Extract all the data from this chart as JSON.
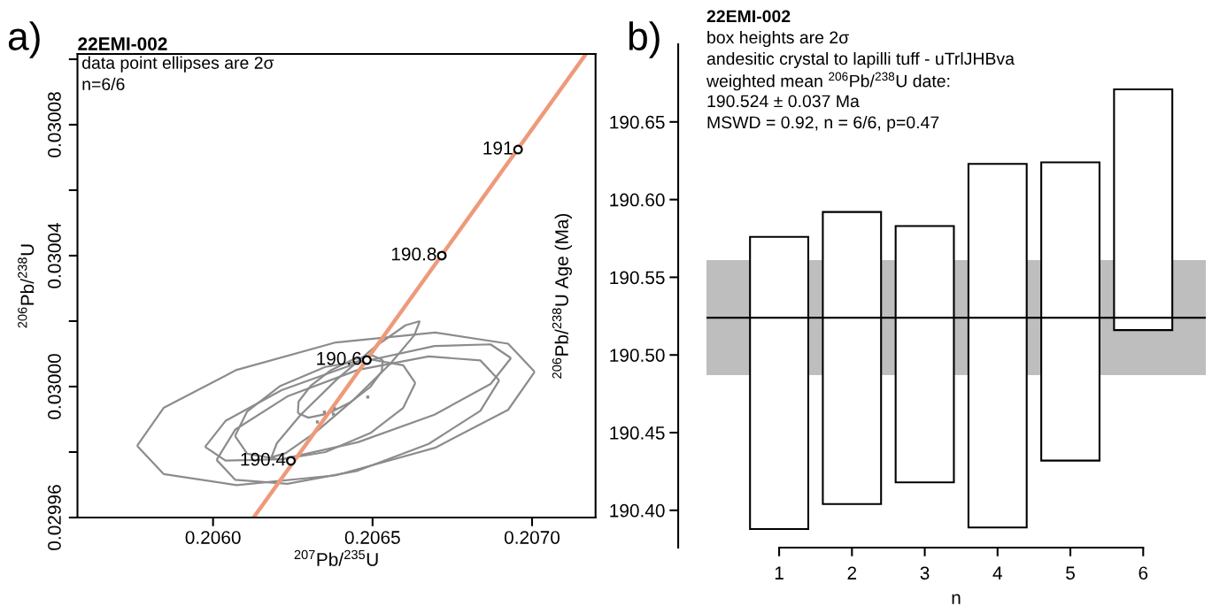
{
  "chart_data": [
    {
      "type": "line",
      "title": "22EMI-002",
      "xlabel": "$^{207}$Pb/$^{235}$U",
      "ylabel": "$^{206}$Pb/$^{238}$U",
      "xlim": [
        0.205575,
        0.207199
      ],
      "ylim": [
        0.02996,
        0.0301016
      ],
      "xticks": [
        {
          "value": 0.206,
          "label": "0.2060"
        },
        {
          "value": 0.2065,
          "label": "0.2065"
        },
        {
          "value": 0.207,
          "label": "0.2070"
        }
      ],
      "yticks": [
        0.02996,
        {
          "value": 0.02998,
          "label": null
        },
        {
          "value": 0.03,
          "label": "0.03000"
        },
        {
          "value": 0.03002,
          "label": null
        },
        0.03004,
        {
          "value": 0.03006,
          "label": null
        },
        0.03008,
        {
          "value": 0.0301,
          "label": null
        }
      ],
      "series": [
        {
          "type": "line",
          "color": "#8c8c8c",
          "x": [
            0.205762,
            0.205845,
            0.206074,
            0.206385,
            0.206696,
            0.206925,
            0.207008
          ],
          "values": [
            0.0299819,
            0.0299935,
            0.0300051,
            0.0300135,
            0.0300165,
            0.0300131,
            0.0300045
          ]
        },
        {
          "type": "line",
          "color": "#8c8c8c",
          "x": [
            0.205762,
            0.205845,
            0.206074,
            0.206385,
            0.206696,
            0.206925,
            0.207008
          ],
          "values": [
            0.0299819,
            0.0299733,
            0.0299699,
            0.0299729,
            0.0299813,
            0.0299929,
            0.0300045
          ]
        },
        {
          "type": "line",
          "color": "#8c8c8c",
          "x": [
            0.205975,
            0.206039,
            0.206215,
            0.206454,
            0.206694,
            0.20687,
            0.206934
          ],
          "values": [
            0.0299816,
            0.0299895,
            0.0299989,
            0.0300073,
            0.0300124,
            0.0300129,
            0.0300087
          ]
        },
        {
          "type": "line",
          "color": "#8c8c8c",
          "x": [
            0.205975,
            0.206039,
            0.206215,
            0.206454,
            0.206694,
            0.20687,
            0.206934
          ],
          "values": [
            0.0299816,
            0.0299774,
            0.0299778,
            0.029983,
            0.0299914,
            0.0300008,
            0.0300087
          ]
        },
        {
          "type": "line",
          "color": "#8c8c8c",
          "x": [
            0.206011,
            0.20607,
            0.206233,
            0.206454,
            0.206676,
            0.206838,
            0.206897
          ],
          "values": [
            0.0299776,
            0.0299869,
            0.029997,
            0.0300051,
            0.0300092,
            0.030008,
            0.0300019
          ]
        },
        {
          "type": "line",
          "color": "#8c8c8c",
          "x": [
            0.206011,
            0.20607,
            0.206233,
            0.206454,
            0.206676,
            0.206838,
            0.206897
          ],
          "values": [
            0.0299776,
            0.0299715,
            0.0299703,
            0.0299743,
            0.0299825,
            0.0299926,
            0.0300019
          ]
        },
        {
          "type": "line",
          "color": "#8c8c8c",
          "x": [
            0.206069,
            0.206107,
            0.206211,
            0.206352,
            0.206493,
            0.206596,
            0.206634
          ],
          "values": [
            0.0299849,
            0.0299924,
            0.0300002,
            0.030006,
            0.0300083,
            0.0300065,
            0.0300011
          ]
        },
        {
          "type": "line",
          "color": "#8c8c8c",
          "x": [
            0.206069,
            0.206107,
            0.206211,
            0.206352,
            0.206493,
            0.206596,
            0.206634
          ],
          "values": [
            0.0299849,
            0.0299795,
            0.0299777,
            0.02998,
            0.0299858,
            0.0299935,
            0.0300011
          ]
        },
        {
          "type": "line",
          "color": "#8c8c8c",
          "x": [
            0.206183,
            0.2062,
            0.206275,
            0.206388,
            0.206508,
            0.206603,
            0.206648
          ],
          "values": [
            0.0299784,
            0.0299827,
            0.0299914,
            0.0300022,
            0.0300122,
            0.0300187,
            0.03002
          ]
        },
        {
          "type": "line",
          "color": "#8c8c8c",
          "x": [
            0.206183,
            0.206228,
            0.206323,
            0.206443,
            0.206556,
            0.206631,
            0.206648
          ],
          "values": [
            0.0299784,
            0.0299797,
            0.0299862,
            0.0299962,
            0.030007,
            0.0300157,
            0.03002
          ]
        },
        {
          "type": "line",
          "color": "#8c8c8c",
          "x": [
            0.206266,
            0.206268,
            0.206306,
            0.206368,
            0.206439,
            0.206499,
            0.206532
          ],
          "values": [
            0.0299919,
            0.0299954,
            0.0300002,
            0.0300049,
            0.0300083,
            0.0300095,
            0.0300081
          ]
        },
        {
          "type": "line",
          "color": "#8c8c8c",
          "x": [
            0.206266,
            0.206299,
            0.206359,
            0.206429,
            0.206492,
            0.206529,
            0.206532
          ],
          "values": [
            0.0299919,
            0.0299905,
            0.0299917,
            0.0299951,
            0.0299998,
            0.0300046,
            0.0300081
          ]
        },
        {
          "type": "scatter",
          "color": "#8c8c8c",
          "x": [
            0.206327,
            0.206349,
            0.206377,
            0.206382,
            0.206485
          ],
          "values": [
            0.0299892,
            0.0299922,
            0.0299916,
            0.0299932,
            0.0299968
          ]
        },
        {
          "type": "line",
          "color": "#ee9a7a",
          "x": [
            0.206127,
            0.207169
          ],
          "values": [
            0.02996,
            0.0301016
          ]
        },
        {
          "type": "scatter",
          "marker": "circle",
          "color": "#000000",
          "x": [
            0.206244,
            0.206482,
            0.206717,
            0.206956
          ],
          "values": [
            0.0299773,
            0.0300081,
            0.03004,
            0.0300724
          ]
        }
      ],
      "annotations": [
        "a)",
        "data point ellipses are 2σ",
        "n=6/6",
        {
          "text": "190.4",
          "x": 0.206244,
          "y": 0.0299773
        },
        {
          "text": "190.6",
          "x": 0.206482,
          "y": 0.0300081
        },
        {
          "text": "190.8",
          "x": 0.206717,
          "y": 0.03004
        },
        {
          "text": "191",
          "x": 0.206956,
          "y": 0.0300724
        }
      ]
    },
    {
      "type": "bar",
      "title": "22EMI-002",
      "xlabel": "n",
      "ylabel": "$^{206}$Pb/$^{238}$U Age (Ma)",
      "categories": [
        "1",
        "2",
        "3",
        "4",
        "5",
        "6"
      ],
      "base": [
        190.388,
        190.404,
        190.418,
        190.389,
        190.432,
        190.516
      ],
      "values": [
        0.188,
        0.188,
        0.165,
        0.234,
        0.192,
        0.155
      ],
      "color": "#ffffff",
      "ylim": [
        190.376,
        190.7
      ],
      "yticks": [
        {
          "value": 190.4,
          "label": "190.40"
        },
        190.45,
        {
          "value": 190.5,
          "label": "190.50"
        },
        190.55,
        {
          "value": 190.6,
          "label": "190.60"
        },
        190.65
      ],
      "bands": [
        {
          "axis": "y",
          "from": 190.487,
          "to": 190.561,
          "color": "#bebebe"
        }
      ],
      "ref_lines": [
        {
          "axis": "y",
          "value": 190.524,
          "color": "#000000"
        }
      ],
      "annotations": [
        "b)",
        "box heights are 2σ",
        "andesitic crystal to lapilli tuff - uTrlJHBva",
        "weighted mean $^{206}$Pb/$^{238}$U date:",
        "190.524 ± 0.037 Ma",
        "MSWD = 0.92, n = 6/6, p=0.47"
      ]
    }
  ]
}
